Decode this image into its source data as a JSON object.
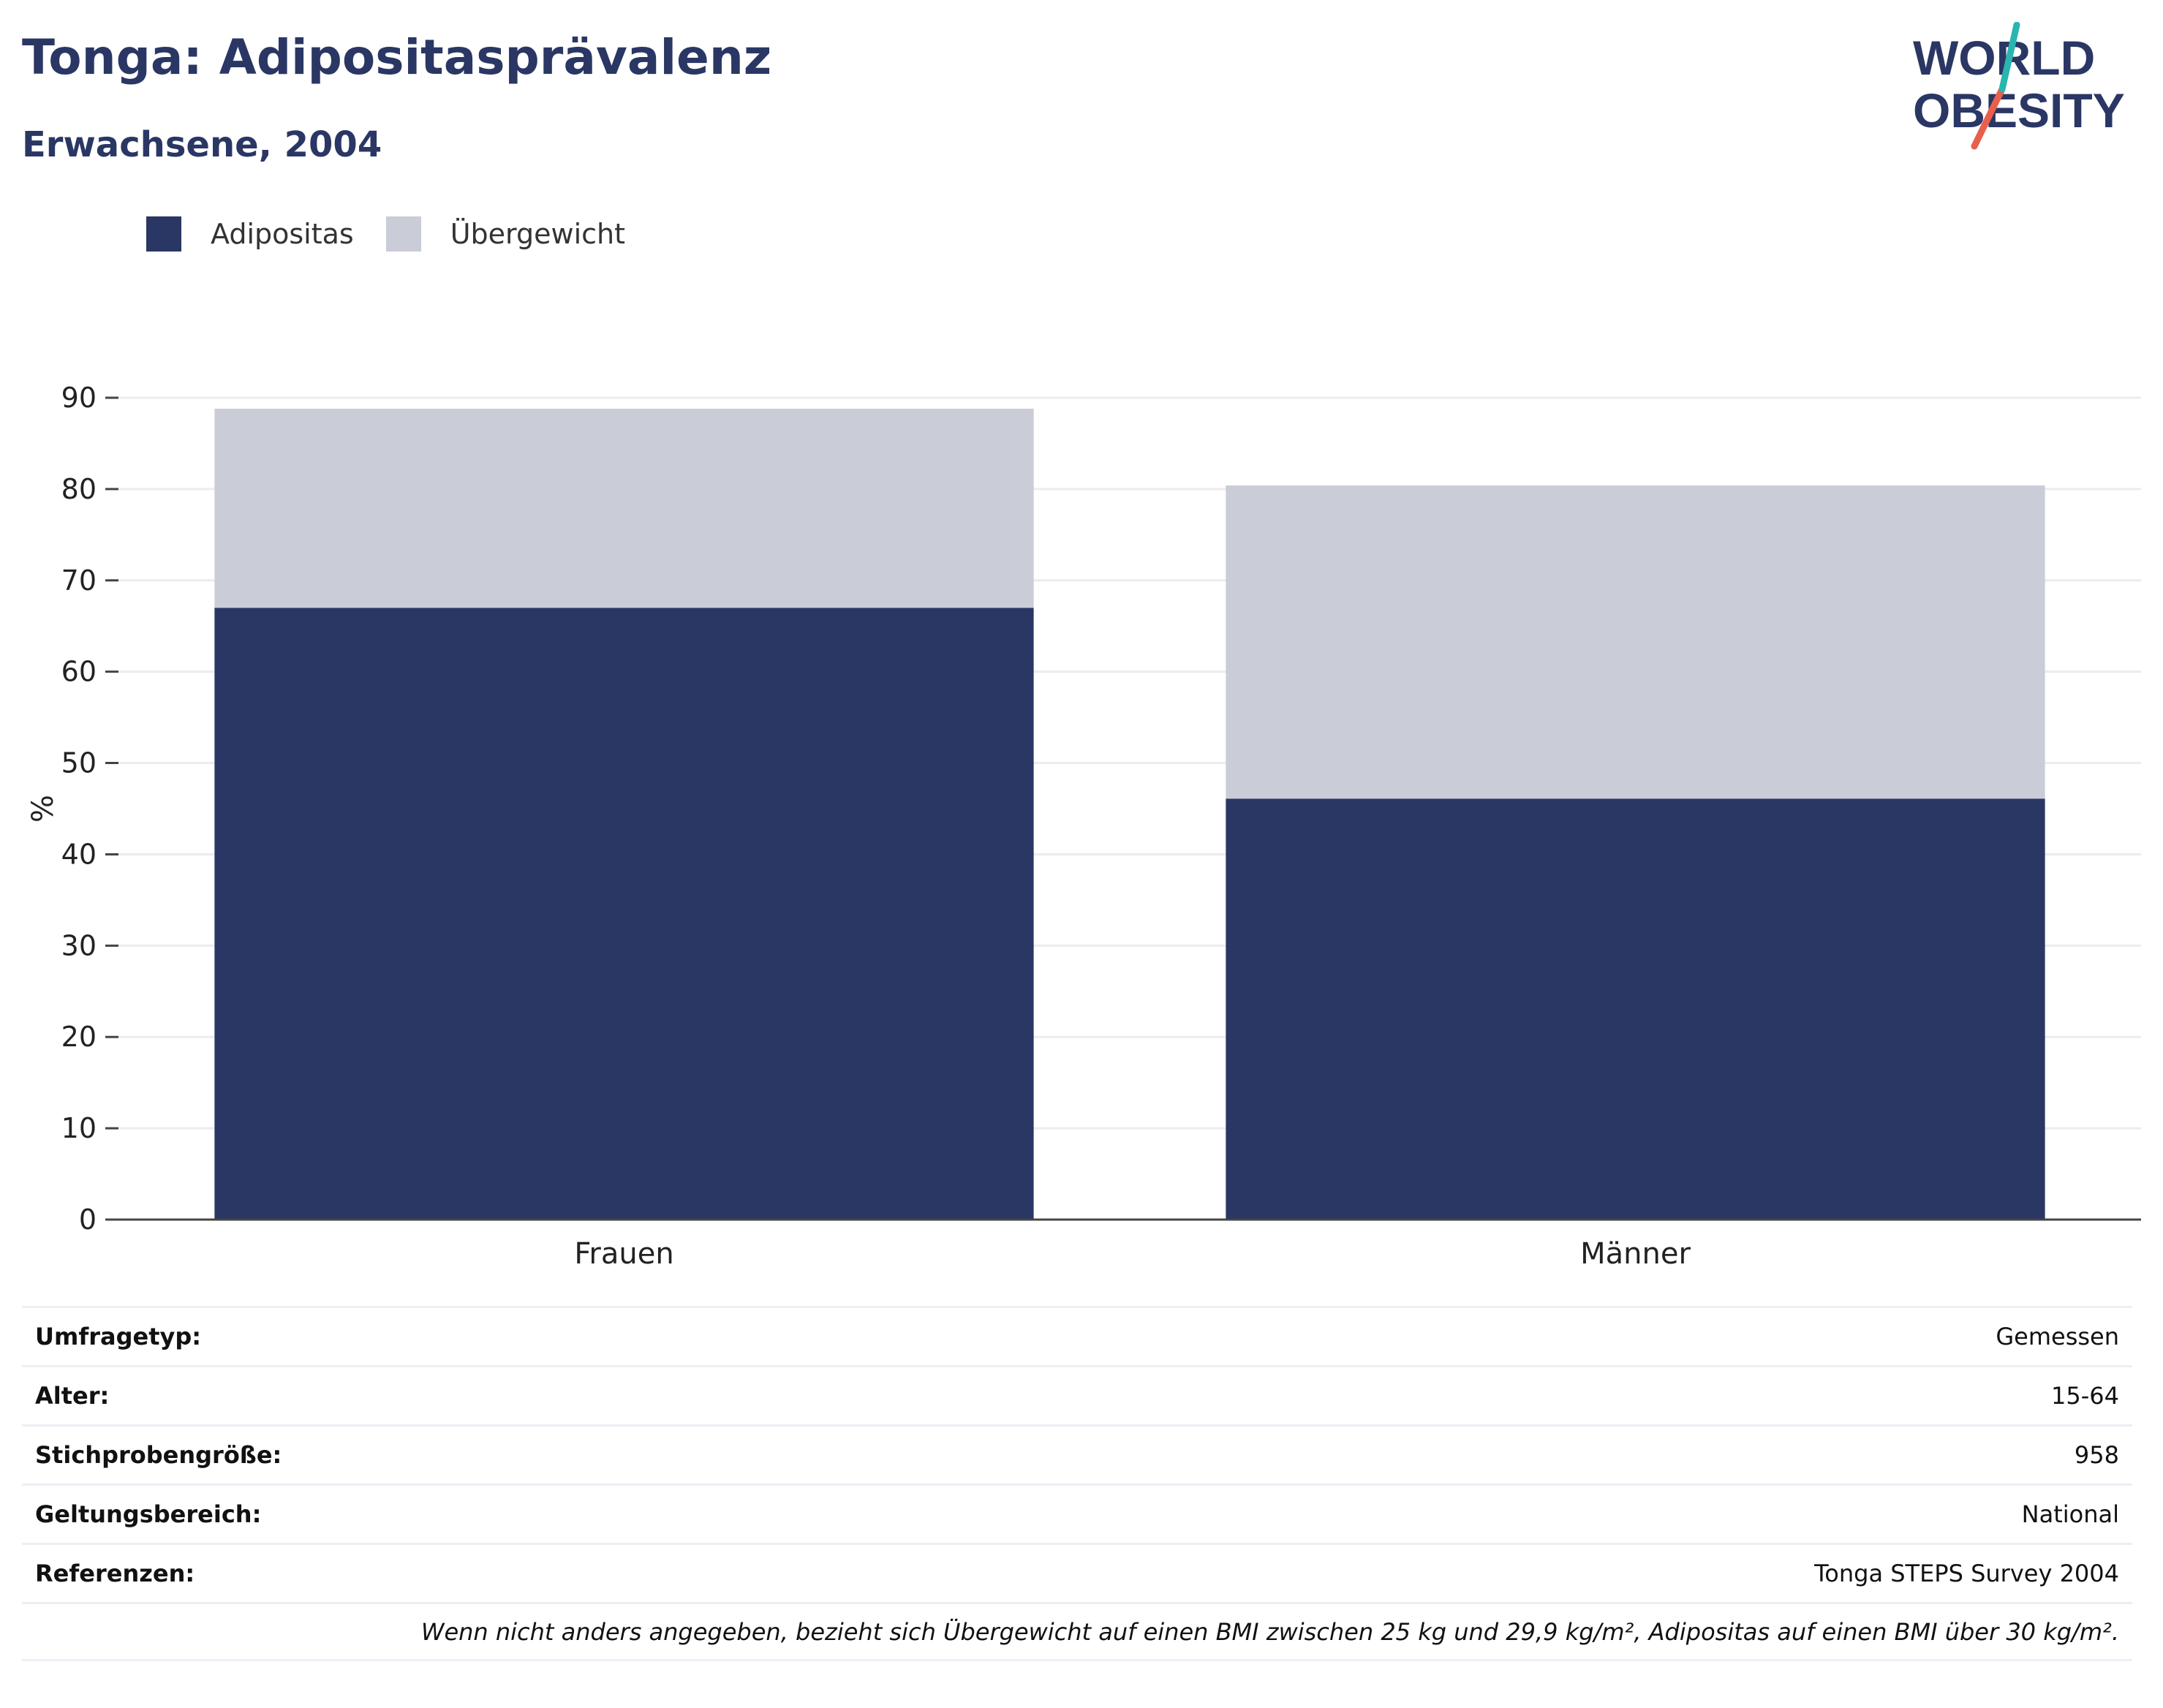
{
  "header": {
    "title": "Tonga: Adipositasprävalenz",
    "subtitle": "Erwachsene, 2004"
  },
  "logo": {
    "line1": "WORLD",
    "line2": "OBESITY"
  },
  "colors": {
    "obesity": "#2a3764",
    "overweight": "#cacdd8",
    "accent_teal": "#2ab5b0",
    "accent_coral": "#e8604c"
  },
  "chart_data": {
    "type": "bar",
    "stacked": true,
    "categories": [
      "Frauen",
      "Männer"
    ],
    "series": [
      {
        "name": "Adipositas",
        "values": [
          67.0,
          46.1
        ]
      },
      {
        "name": "Übergewicht",
        "values": [
          21.8,
          34.3
        ]
      }
    ],
    "ylabel": "%",
    "ylim": [
      0,
      90
    ],
    "yticks": [
      0,
      10,
      20,
      30,
      40,
      50,
      60,
      70,
      80,
      90
    ],
    "grid": true,
    "legend_position": "top-left"
  },
  "info": [
    {
      "key": "Umfragetyp:",
      "value": "Gemessen"
    },
    {
      "key": "Alter:",
      "value": "15-64"
    },
    {
      "key": "Stichprobengröße:",
      "value": "958"
    },
    {
      "key": "Geltungsbereich:",
      "value": "National"
    },
    {
      "key": "Referenzen:",
      "value": "Tonga STEPS Survey 2004"
    }
  ],
  "note": "Wenn nicht anders angegeben, bezieht sich Übergewicht auf einen BMI zwischen 25 kg und 29,9 kg/m², Adipositas auf einen BMI über 30 kg/m²."
}
